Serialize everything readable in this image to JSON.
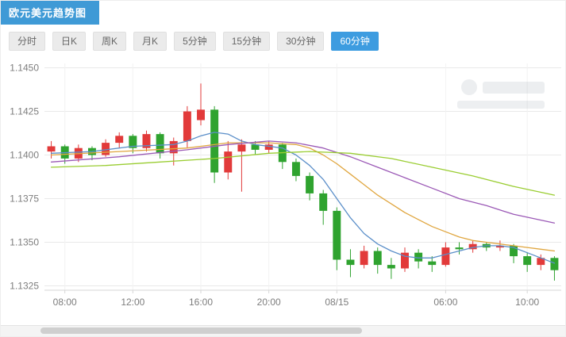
{
  "header": {
    "title": "欧元美元趋势图"
  },
  "tabs": [
    {
      "label": "分时",
      "active": false
    },
    {
      "label": "日K",
      "active": false
    },
    {
      "label": "周K",
      "active": false
    },
    {
      "label": "月K",
      "active": false
    },
    {
      "label": "5分钟",
      "active": false
    },
    {
      "label": "15分钟",
      "active": false
    },
    {
      "label": "30分钟",
      "active": false
    },
    {
      "label": "60分钟",
      "active": true
    }
  ],
  "colors": {
    "accent": "#3d9ce0",
    "up": "#e23a3a",
    "down": "#2fa32f",
    "grid": "#e9e9e9",
    "axis_line": "#d6d6d6",
    "axis_text": "#7d7d7d"
  },
  "chart_data": {
    "type": "candlestick",
    "title": "欧元美元趋势图",
    "interval": "60分钟",
    "legend_position": "none",
    "grid": true,
    "ylim": [
      1.13225,
      1.14525
    ],
    "y_ticks": [
      1.145,
      1.1425,
      1.14,
      1.1375,
      1.135,
      1.1325
    ],
    "x_ticks": [
      {
        "i": 1,
        "label": "08:00"
      },
      {
        "i": 6,
        "label": "12:00"
      },
      {
        "i": 11,
        "label": "16:00"
      },
      {
        "i": 16,
        "label": "20:00"
      },
      {
        "i": 21,
        "label": "08/15"
      },
      {
        "i": 29,
        "label": "06:00"
      },
      {
        "i": 35,
        "label": "10:00"
      }
    ],
    "candles_format": [
      "open",
      "high",
      "low",
      "close"
    ],
    "candles": [
      [
        1.1402,
        1.1408,
        1.1398,
        1.1405
      ],
      [
        1.1405,
        1.1406,
        1.1395,
        1.1398
      ],
      [
        1.1398,
        1.1406,
        1.1396,
        1.1404
      ],
      [
        1.1404,
        1.1405,
        1.1397,
        1.14
      ],
      [
        1.14,
        1.1409,
        1.1399,
        1.1407
      ],
      [
        1.1407,
        1.1413,
        1.1404,
        1.1411
      ],
      [
        1.1411,
        1.1412,
        1.1401,
        1.1404
      ],
      [
        1.1404,
        1.1414,
        1.1402,
        1.1412
      ],
      [
        1.1412,
        1.1413,
        1.1398,
        1.1401
      ],
      [
        1.1401,
        1.141,
        1.1394,
        1.1408
      ],
      [
        1.1408,
        1.1428,
        1.1404,
        1.1425
      ],
      [
        1.142,
        1.1441,
        1.1417,
        1.1426
      ],
      [
        1.1426,
        1.1428,
        1.1384,
        1.139
      ],
      [
        1.139,
        1.1408,
        1.1386,
        1.1402
      ],
      [
        1.1402,
        1.1409,
        1.1379,
        1.1406
      ],
      [
        1.1406,
        1.1408,
        1.14,
        1.1403
      ],
      [
        1.1403,
        1.1408,
        1.1401,
        1.1406
      ],
      [
        1.1406,
        1.1407,
        1.1392,
        1.1396
      ],
      [
        1.1396,
        1.1398,
        1.1385,
        1.1388
      ],
      [
        1.1388,
        1.139,
        1.1374,
        1.1378
      ],
      [
        1.1378,
        1.138,
        1.136,
        1.1368
      ],
      [
        1.1368,
        1.137,
        1.1334,
        1.134
      ],
      [
        1.134,
        1.1346,
        1.133,
        1.1337
      ],
      [
        1.1337,
        1.1348,
        1.1335,
        1.1345
      ],
      [
        1.1345,
        1.1347,
        1.1332,
        1.1337
      ],
      [
        1.1337,
        1.1341,
        1.1329,
        1.1335
      ],
      [
        1.1335,
        1.1347,
        1.1333,
        1.1344
      ],
      [
        1.1344,
        1.1346,
        1.1335,
        1.1339
      ],
      [
        1.1339,
        1.1342,
        1.1333,
        1.1337
      ],
      [
        1.1337,
        1.135,
        1.1336,
        1.1347
      ],
      [
        1.1347,
        1.135,
        1.1343,
        1.1346
      ],
      [
        1.1346,
        1.1351,
        1.1344,
        1.1349
      ],
      [
        1.1349,
        1.135,
        1.1345,
        1.1347
      ],
      [
        1.1347,
        1.1351,
        1.1345,
        1.1348
      ],
      [
        1.1348,
        1.1349,
        1.1338,
        1.1342
      ],
      [
        1.1342,
        1.1344,
        1.1333,
        1.1337
      ],
      [
        1.1337,
        1.1343,
        1.1334,
        1.1341
      ],
      [
        1.1341,
        1.1342,
        1.1328,
        1.1334
      ]
    ],
    "ma_series": [
      {
        "name": "ma-blue",
        "color": "#5b8fc9",
        "points": [
          [
            0,
            1.1401
          ],
          [
            3,
            1.1402
          ],
          [
            6,
            1.1405
          ],
          [
            9,
            1.1406
          ],
          [
            10,
            1.1408
          ],
          [
            11,
            1.1411
          ],
          [
            12,
            1.1413
          ],
          [
            13,
            1.1412
          ],
          [
            14,
            1.1408
          ],
          [
            15,
            1.1406
          ],
          [
            16,
            1.1405
          ],
          [
            17,
            1.1404
          ],
          [
            18,
            1.14
          ],
          [
            19,
            1.1394
          ],
          [
            20,
            1.1386
          ],
          [
            21,
            1.1375
          ],
          [
            22,
            1.1364
          ],
          [
            23,
            1.1355
          ],
          [
            24,
            1.1349
          ],
          [
            25,
            1.1345
          ],
          [
            26,
            1.1342
          ],
          [
            27,
            1.1341
          ],
          [
            28,
            1.1341
          ],
          [
            29,
            1.1343
          ],
          [
            30,
            1.1345
          ],
          [
            31,
            1.1347
          ],
          [
            32,
            1.1348
          ],
          [
            33,
            1.1348
          ],
          [
            34,
            1.1347
          ],
          [
            35,
            1.1344
          ],
          [
            36,
            1.1341
          ],
          [
            37,
            1.1338
          ]
        ]
      },
      {
        "name": "ma-orange",
        "color": "#e0a63f",
        "points": [
          [
            0,
            1.14
          ],
          [
            5,
            1.1402
          ],
          [
            10,
            1.1404
          ],
          [
            13,
            1.1407
          ],
          [
            16,
            1.1407
          ],
          [
            18,
            1.1406
          ],
          [
            19,
            1.1404
          ],
          [
            20,
            1.14
          ],
          [
            21,
            1.1395
          ],
          [
            22,
            1.1389
          ],
          [
            23,
            1.1383
          ],
          [
            24,
            1.1377
          ],
          [
            25,
            1.1372
          ],
          [
            26,
            1.1367
          ],
          [
            27,
            1.1363
          ],
          [
            28,
            1.1359
          ],
          [
            29,
            1.1356
          ],
          [
            30,
            1.1353
          ],
          [
            31,
            1.1351
          ],
          [
            32,
            1.135
          ],
          [
            33,
            1.1349
          ],
          [
            34,
            1.1348
          ],
          [
            35,
            1.1347
          ],
          [
            36,
            1.1346
          ],
          [
            37,
            1.1345
          ]
        ]
      },
      {
        "name": "ma-purple",
        "color": "#9b59b6",
        "points": [
          [
            0,
            1.1396
          ],
          [
            5,
            1.1399
          ],
          [
            10,
            1.1403
          ],
          [
            13,
            1.1406
          ],
          [
            16,
            1.1408
          ],
          [
            18,
            1.1407
          ],
          [
            20,
            1.1404
          ],
          [
            22,
            1.1399
          ],
          [
            24,
            1.1393
          ],
          [
            26,
            1.1387
          ],
          [
            28,
            1.1381
          ],
          [
            30,
            1.1375
          ],
          [
            32,
            1.1371
          ],
          [
            34,
            1.1366
          ],
          [
            37,
            1.1361
          ]
        ]
      },
      {
        "name": "ma-green",
        "color": "#9acd32",
        "points": [
          [
            0,
            1.1393
          ],
          [
            4,
            1.1394
          ],
          [
            8,
            1.1396
          ],
          [
            12,
            1.1398
          ],
          [
            16,
            1.1401
          ],
          [
            19,
            1.1402
          ],
          [
            22,
            1.1401
          ],
          [
            25,
            1.1398
          ],
          [
            28,
            1.1393
          ],
          [
            31,
            1.1388
          ],
          [
            34,
            1.1382
          ],
          [
            37,
            1.1377
          ]
        ]
      }
    ]
  },
  "scrollbar": {
    "thumb_left_pct": 7,
    "thumb_width_pct": 57
  }
}
